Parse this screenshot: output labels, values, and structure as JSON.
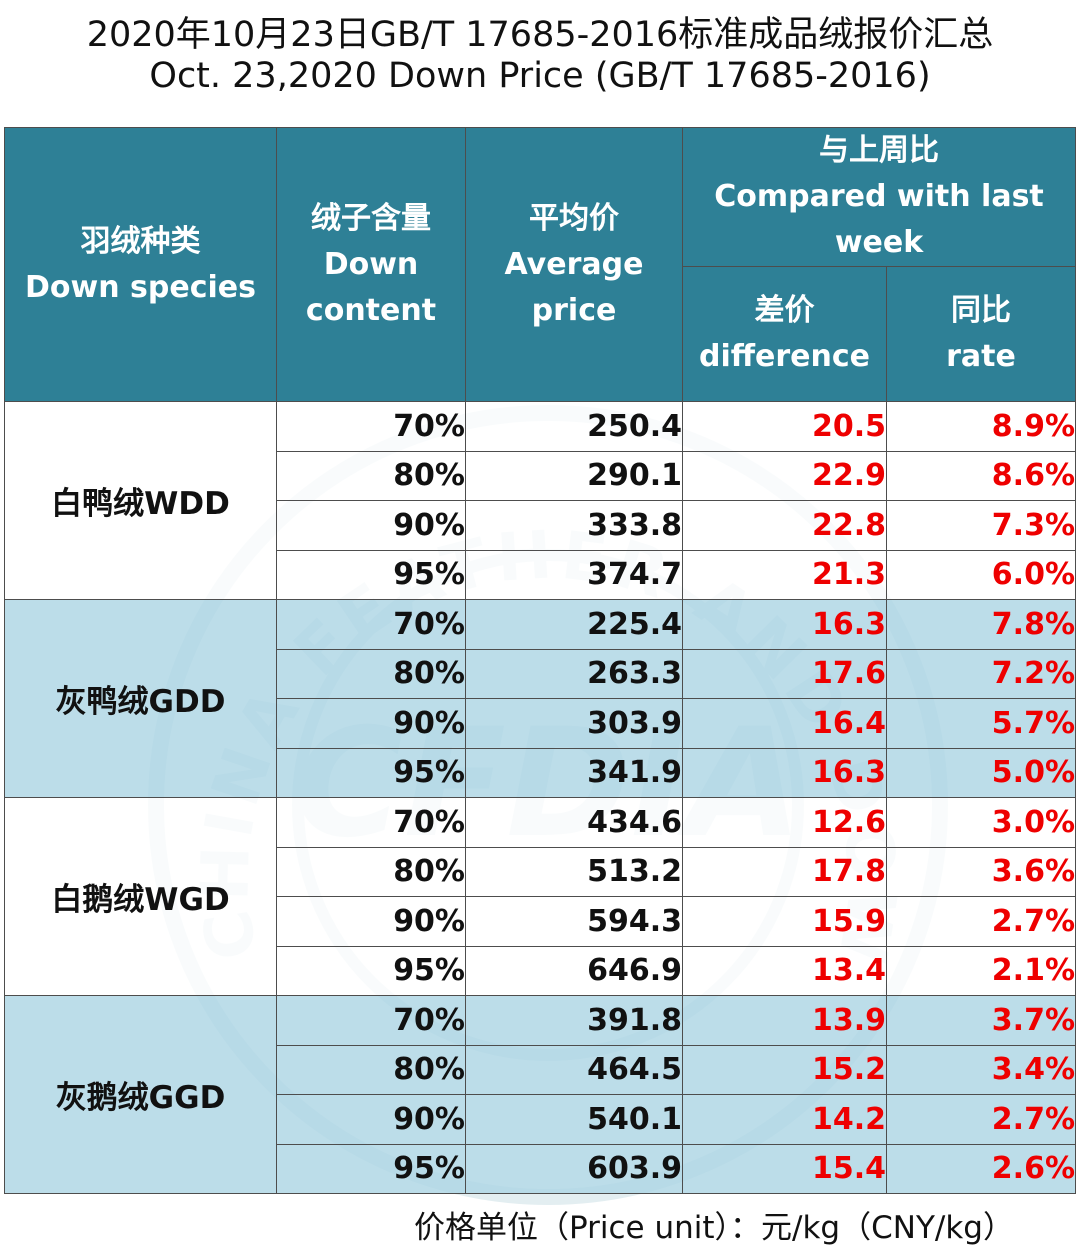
{
  "title_cn": "2020年10月23日GB/T 17685-2016标准成品绒报价汇总",
  "title_en": "Oct. 23,2020 Down Price (GB/T 17685-2016)",
  "headers": {
    "species_cn": "羽绒种类",
    "species_en": "Down species",
    "content_cn": "绒子含量",
    "content_en_1": "Down",
    "content_en_2": "content",
    "avg_cn": "平均价",
    "avg_en_1": "Average",
    "avg_en_2": "price",
    "compare_cn": "与上周比",
    "compare_en_1": "Compared with last",
    "compare_en_2": "week",
    "diff_cn": "差价",
    "diff_en": "difference",
    "rate_cn": "同比",
    "rate_en": "rate"
  },
  "groups": [
    {
      "species": "白鸭绒WDD",
      "rows": [
        {
          "content": "70%",
          "price": "250.4",
          "diff": "20.5",
          "rate": "8.9%"
        },
        {
          "content": "80%",
          "price": "290.1",
          "diff": "22.9",
          "rate": "8.6%"
        },
        {
          "content": "90%",
          "price": "333.8",
          "diff": "22.8",
          "rate": "7.3%"
        },
        {
          "content": "95%",
          "price": "374.7",
          "diff": "21.3",
          "rate": "6.0%"
        }
      ]
    },
    {
      "species": "灰鸭绒GDD",
      "rows": [
        {
          "content": "70%",
          "price": "225.4",
          "diff": "16.3",
          "rate": "7.8%"
        },
        {
          "content": "80%",
          "price": "263.3",
          "diff": "17.6",
          "rate": "7.2%"
        },
        {
          "content": "90%",
          "price": "303.9",
          "diff": "16.4",
          "rate": "5.7%"
        },
        {
          "content": "95%",
          "price": "341.9",
          "diff": "16.3",
          "rate": "5.0%"
        }
      ]
    },
    {
      "species": "白鹅绒WGD",
      "rows": [
        {
          "content": "70%",
          "price": "434.6",
          "diff": "12.6",
          "rate": "3.0%"
        },
        {
          "content": "80%",
          "price": "513.2",
          "diff": "17.8",
          "rate": "3.6%"
        },
        {
          "content": "90%",
          "price": "594.3",
          "diff": "15.9",
          "rate": "2.7%"
        },
        {
          "content": "95%",
          "price": "646.9",
          "diff": "13.4",
          "rate": "2.1%"
        }
      ]
    },
    {
      "species": "灰鹅绒GGD",
      "rows": [
        {
          "content": "70%",
          "price": "391.8",
          "diff": "13.9",
          "rate": "3.7%"
        },
        {
          "content": "80%",
          "price": "464.5",
          "diff": "15.2",
          "rate": "3.4%"
        },
        {
          "content": "90%",
          "price": "540.1",
          "diff": "14.2",
          "rate": "2.7%"
        },
        {
          "content": "95%",
          "price": "603.9",
          "diff": "15.4",
          "rate": "2.6%"
        }
      ]
    }
  ],
  "footer": "价格单位（Price unit）：元/kg（CNY/kg）",
  "colors": {
    "header_bg": "#2e8096",
    "group_blue": "#add6e4",
    "positive_red": "#ee0000"
  },
  "watermark_text": "CHINA FEATHER AND DOWN INDUSTRIAL ASSOCIATION",
  "watermark_logo": "CFDIA"
}
